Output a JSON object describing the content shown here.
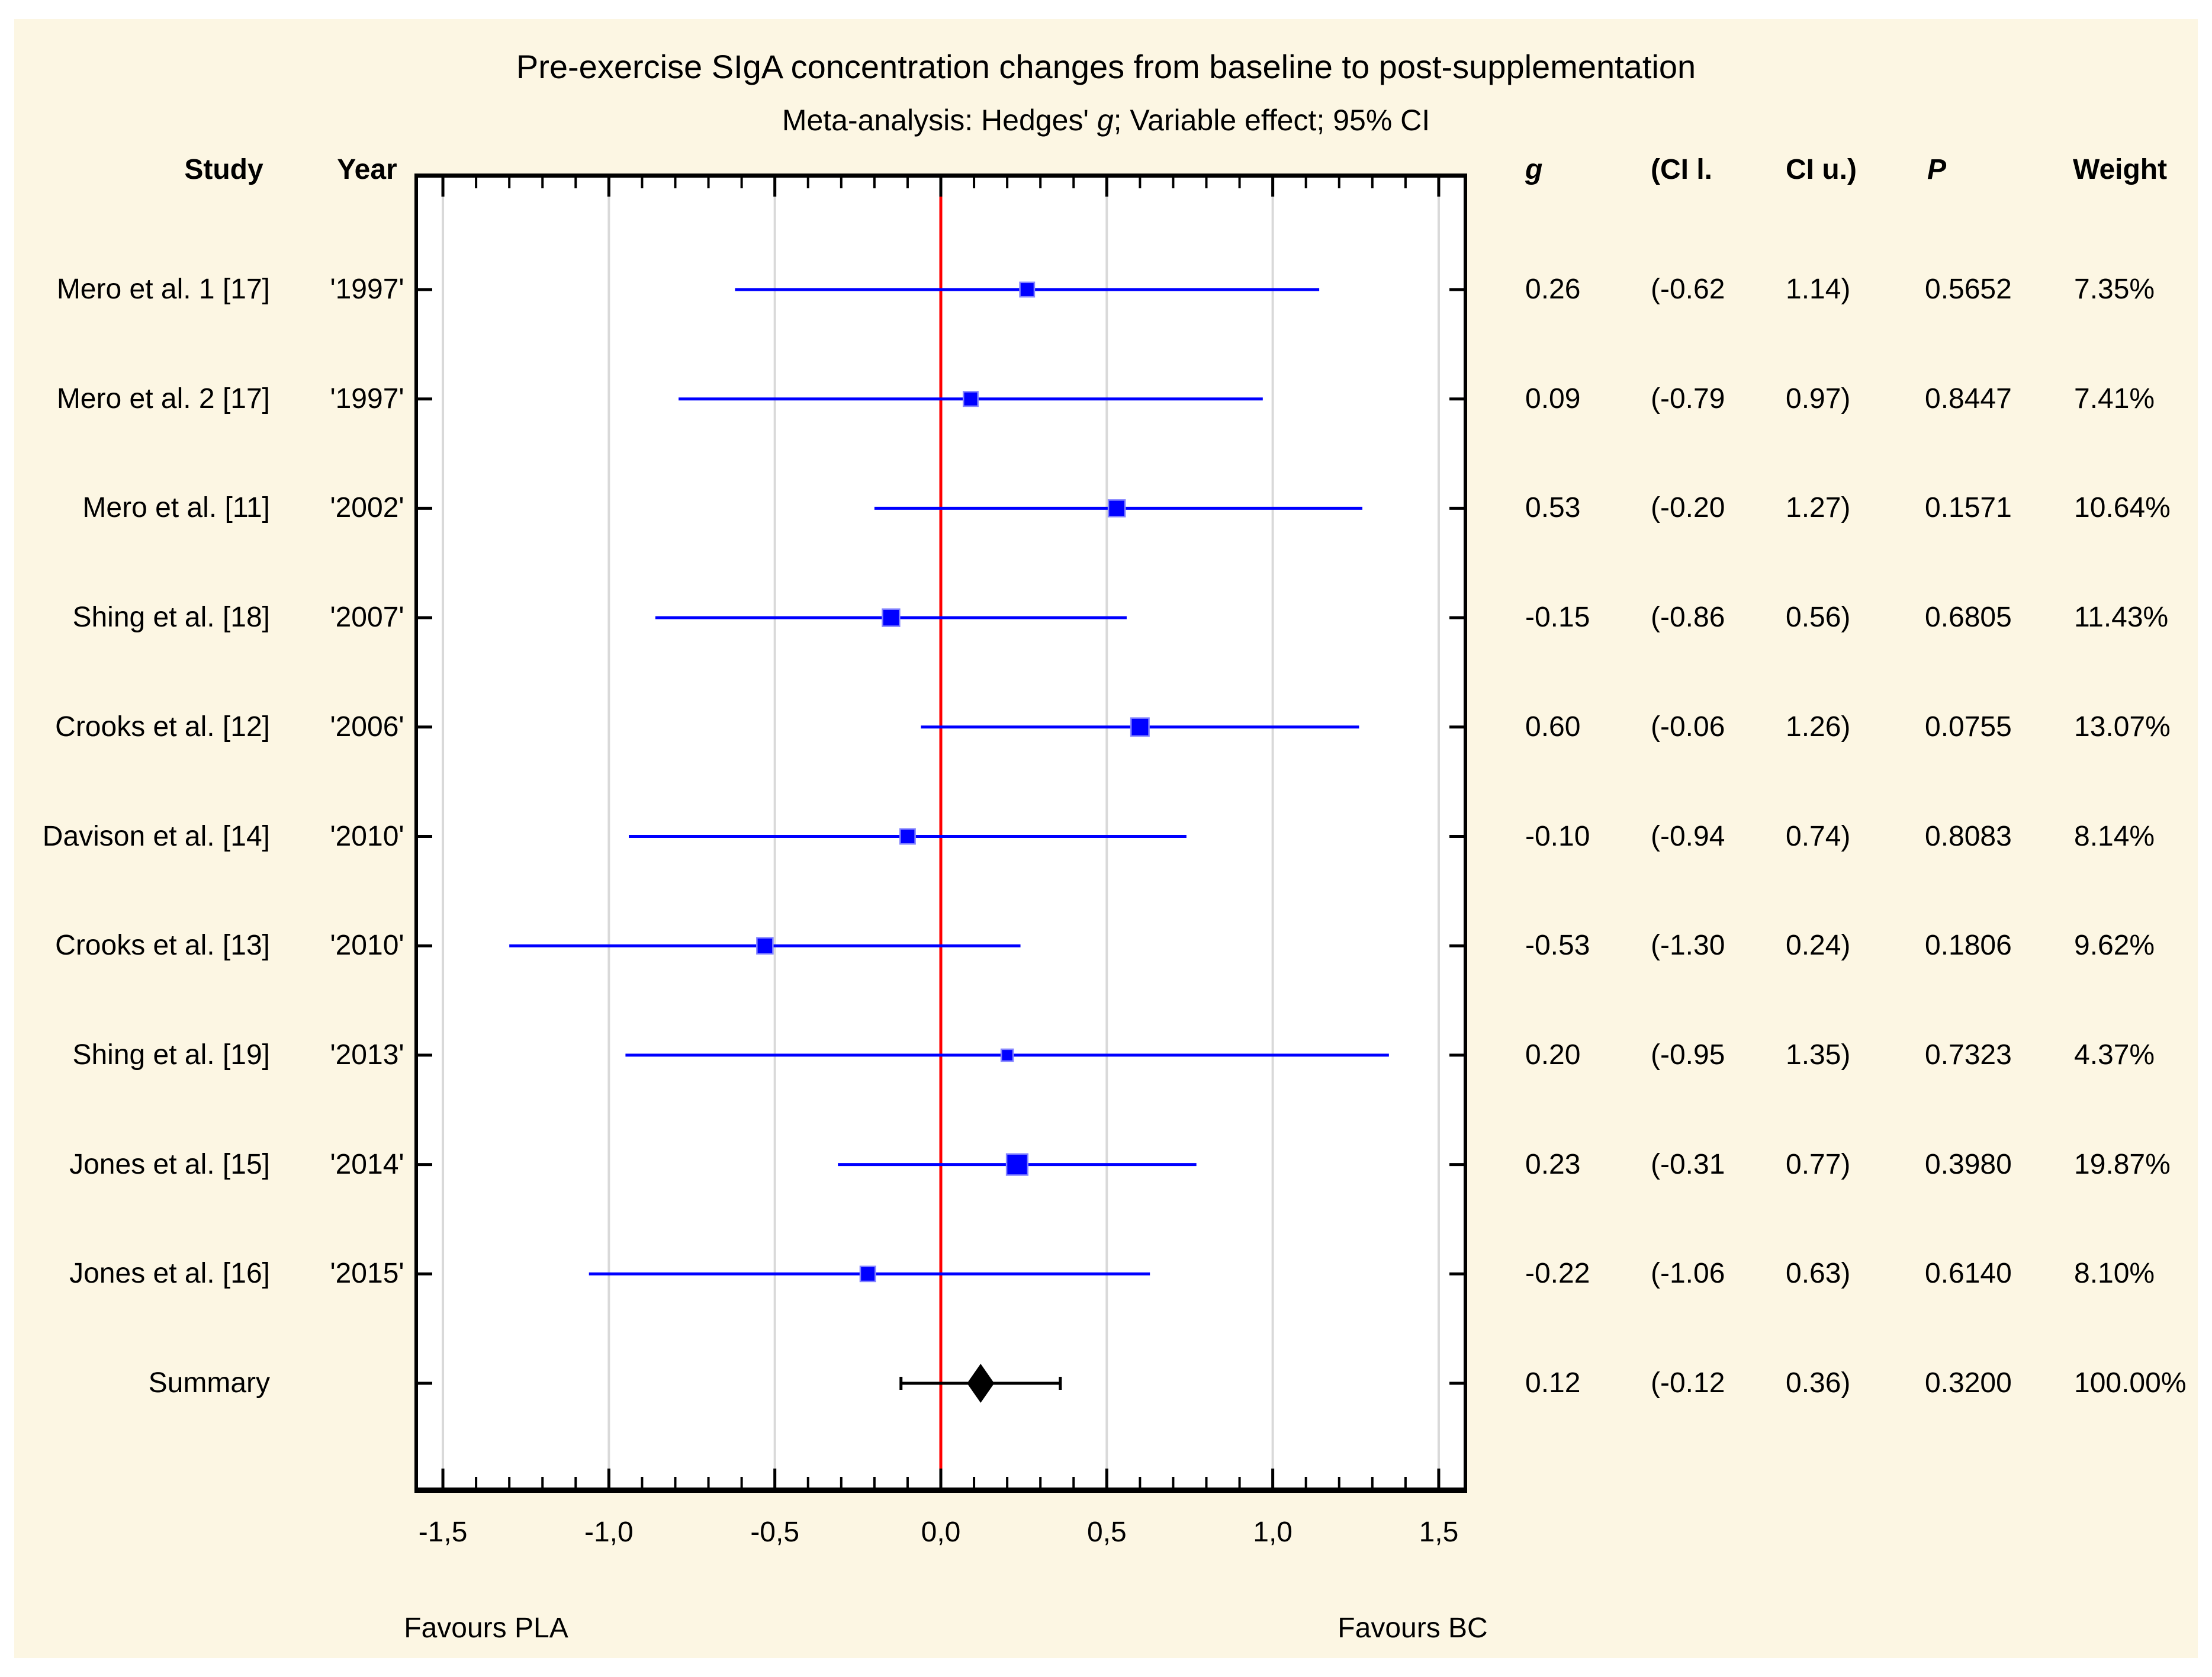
{
  "axis_footer": {
    "favours_left": "Favours PLA",
    "favours_right": "Favours BC"
  },
  "table": {
    "headers": {
      "study": "Study",
      "year": "Year",
      "g": "g",
      "ci_lower": "(CI l.",
      "ci_upper": "CI u.)",
      "p": "P",
      "weight": "Weight"
    }
  },
  "chart_data": {
    "type": "forest",
    "title": "Pre-exercise SIgA concentration changes from baseline to post-supplementation",
    "subtitle": {
      "prefix": "Meta-analysis: Hedges' ",
      "italic_term": "g",
      "suffix": "; Variable effect; 95% CI"
    },
    "x_axis": {
      "min": -1.575,
      "max": 1.575,
      "tick_values": [
        -1.5,
        -1.0,
        -0.5,
        0.0,
        0.5,
        1.0,
        1.5
      ],
      "tick_labels": [
        "-1,5",
        "-1,0",
        "-0,5",
        "0,0",
        "0,5",
        "1,0",
        "1,5"
      ],
      "minor_tick_step": 0.1,
      "major_tick_step": 0.5,
      "gridlines": [
        -1.5,
        -1.0,
        -0.5,
        0.5,
        1.0,
        1.5
      ],
      "zero_line": 0.0
    },
    "rows": [
      {
        "study": "Mero et al. 1 [17]",
        "year": "'1997'",
        "g": 0.26,
        "ci_lower": -0.62,
        "ci_upper": 1.14,
        "weight_pct": 7.35,
        "display": {
          "g": "0.26",
          "ci_lower": "(-0.62",
          "ci_upper": "1.14)",
          "p": "0.5652",
          "weight": "7.35%"
        }
      },
      {
        "study": "Mero et al. 2 [17]",
        "year": "'1997'",
        "g": 0.09,
        "ci_lower": -0.79,
        "ci_upper": 0.97,
        "weight_pct": 7.41,
        "display": {
          "g": "0.09",
          "ci_lower": "(-0.79",
          "ci_upper": "0.97)",
          "p": "0.8447",
          "weight": "7.41%"
        }
      },
      {
        "study": "Mero et al. [11]",
        "year": "'2002'",
        "g": 0.53,
        "ci_lower": -0.2,
        "ci_upper": 1.27,
        "weight_pct": 10.64,
        "display": {
          "g": "0.53",
          "ci_lower": "(-0.20",
          "ci_upper": "1.27)",
          "p": "0.1571",
          "weight": "10.64%"
        }
      },
      {
        "study": "Shing et al. [18]",
        "year": "'2007'",
        "g": -0.15,
        "ci_lower": -0.86,
        "ci_upper": 0.56,
        "weight_pct": 11.43,
        "display": {
          "g": "-0.15",
          "ci_lower": "(-0.86",
          "ci_upper": "0.56)",
          "p": "0.6805",
          "weight": "11.43%"
        }
      },
      {
        "study": "Crooks et al. [12]",
        "year": "'2006'",
        "g": 0.6,
        "ci_lower": -0.06,
        "ci_upper": 1.26,
        "weight_pct": 13.07,
        "display": {
          "g": "0.60",
          "ci_lower": "(-0.06",
          "ci_upper": "1.26)",
          "p": "0.0755",
          "weight": "13.07%"
        }
      },
      {
        "study": "Davison et al. [14]",
        "year": "'2010'",
        "g": -0.1,
        "ci_lower": -0.94,
        "ci_upper": 0.74,
        "weight_pct": 8.14,
        "display": {
          "g": "-0.10",
          "ci_lower": "(-0.94",
          "ci_upper": "0.74)",
          "p": "0.8083",
          "weight": "8.14%"
        }
      },
      {
        "study": "Crooks et al. [13]",
        "year": "'2010'",
        "g": -0.53,
        "ci_lower": -1.3,
        "ci_upper": 0.24,
        "weight_pct": 9.62,
        "display": {
          "g": "-0.53",
          "ci_lower": "(-1.30",
          "ci_upper": "0.24)",
          "p": "0.1806",
          "weight": "9.62%"
        }
      },
      {
        "study": "Shing et al. [19]",
        "year": "'2013'",
        "g": 0.2,
        "ci_lower": -0.95,
        "ci_upper": 1.35,
        "weight_pct": 4.37,
        "display": {
          "g": "0.20",
          "ci_lower": "(-0.95",
          "ci_upper": "1.35)",
          "p": "0.7323",
          "weight": "4.37%"
        }
      },
      {
        "study": "Jones et al. [15]",
        "year": "'2014'",
        "g": 0.23,
        "ci_lower": -0.31,
        "ci_upper": 0.77,
        "weight_pct": 19.87,
        "display": {
          "g": "0.23",
          "ci_lower": "(-0.31",
          "ci_upper": "0.77)",
          "p": "0.3980",
          "weight": "19.87%"
        }
      },
      {
        "study": "Jones et al. [16]",
        "year": "'2015'",
        "g": -0.22,
        "ci_lower": -1.06,
        "ci_upper": 0.63,
        "weight_pct": 8.1,
        "display": {
          "g": "-0.22",
          "ci_lower": "(-1.06",
          "ci_upper": "0.63)",
          "p": "0.6140",
          "weight": "8.10%"
        }
      }
    ],
    "summary": {
      "study": "Summary",
      "year": "",
      "g": 0.12,
      "ci_lower": -0.12,
      "ci_upper": 0.36,
      "weight_pct": 100.0,
      "display": {
        "g": "0.12",
        "ci_lower": "(-0.12",
        "ci_upper": "0.36)",
        "p": "0.3200",
        "weight": "100.00%"
      }
    },
    "colors": {
      "study_marker": "#0000ff",
      "study_marker_edge": "#8585ff",
      "summary_marker": "#000000",
      "zero_line": "#ff0000",
      "gridline": "#d9d9d9",
      "background": "#fcf6e3",
      "plot_background": "#ffffff"
    }
  }
}
